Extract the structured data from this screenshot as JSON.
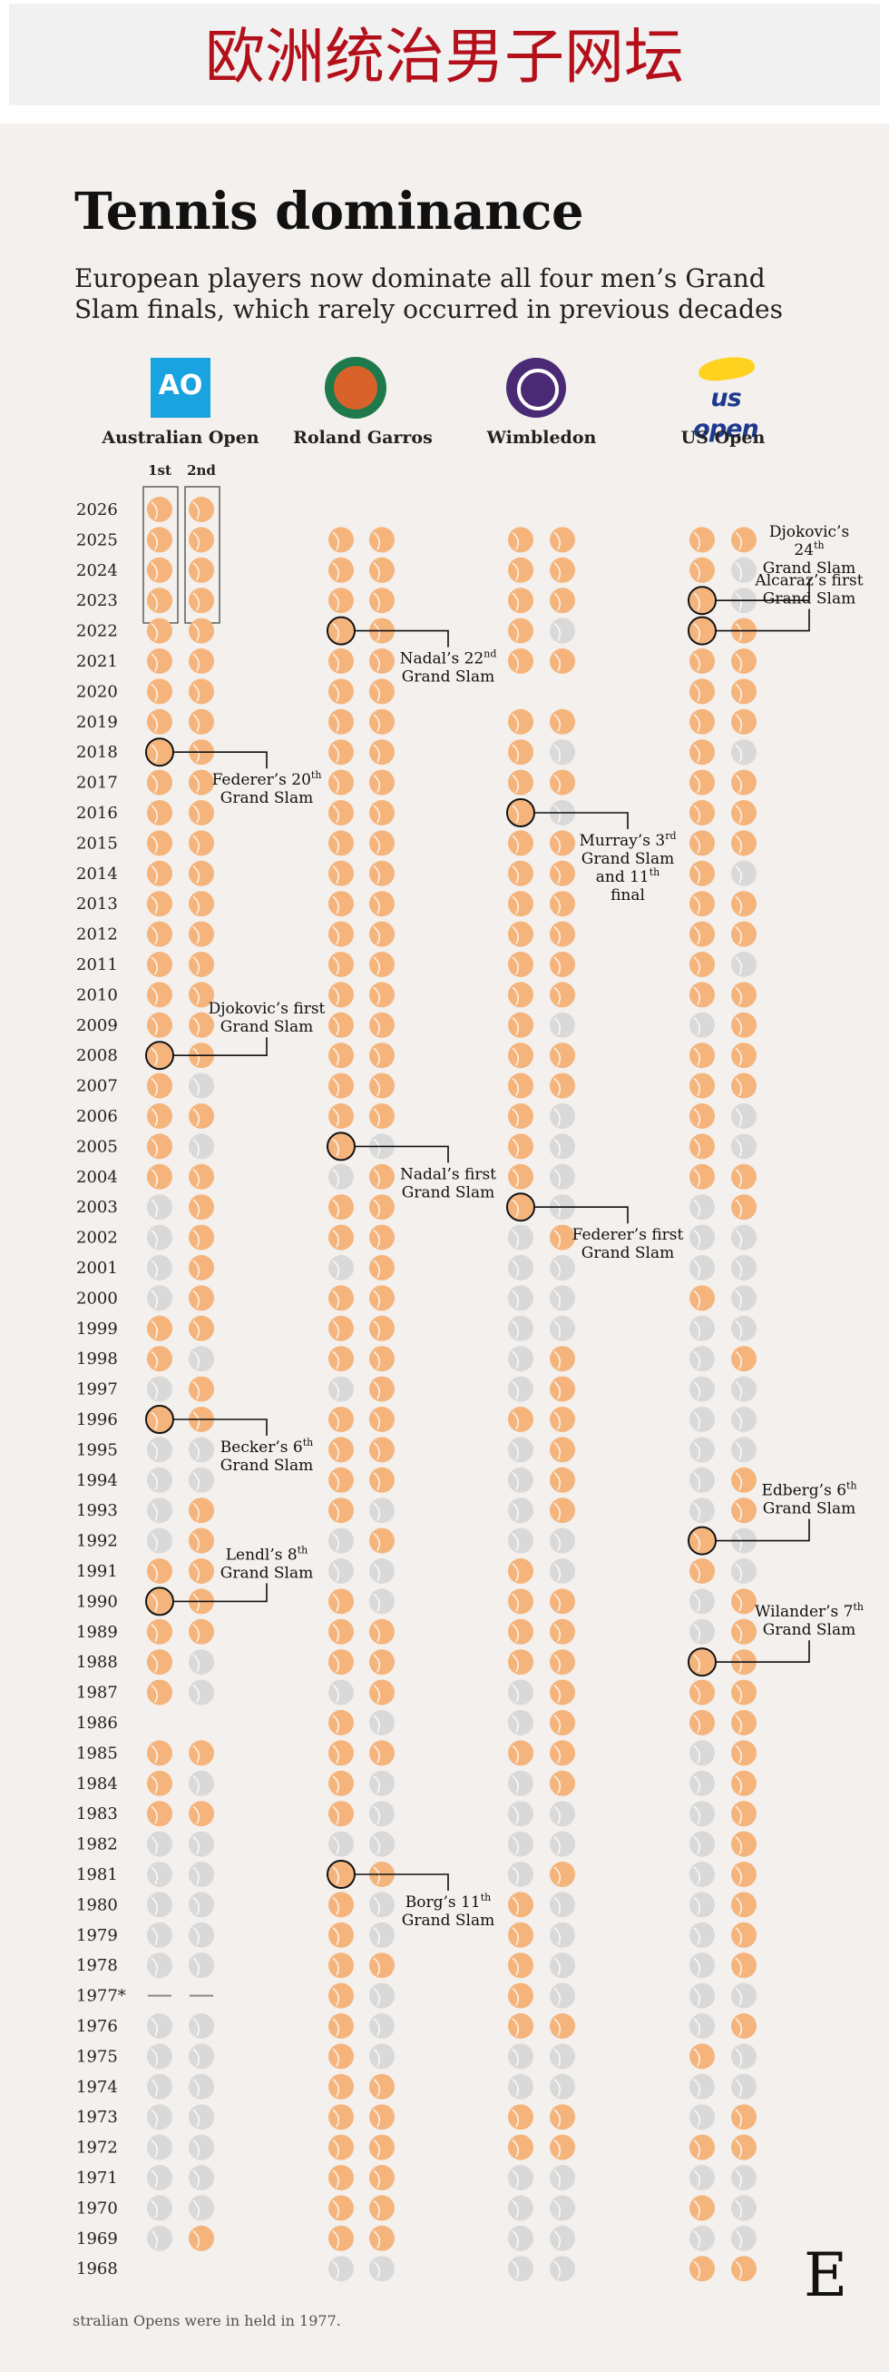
{
  "banner": {
    "title": "欧洲统治男子网坛"
  },
  "title": "Tennis dominance",
  "subtitle": "European players now dominate all four men’s Grand Slam finals, which rarely occurred in previous decades",
  "columns": [
    {
      "name": "Australian Open",
      "logo_text": "AO"
    },
    {
      "name": "Roland Garros",
      "logo_text": ""
    },
    {
      "name": "Wimbledon",
      "logo_text": ""
    },
    {
      "name": "US Open",
      "logo_text": "us open"
    }
  ],
  "subheaders": [
    "1st",
    "2nd"
  ],
  "footnote": "stralian Opens were in held in 1977.",
  "brand": "E",
  "colors": {
    "european": "#f5b47c",
    "non_european": "#d9d9d9",
    "ring": "#111111",
    "banner_text": "#b3101a"
  },
  "chart_data": {
    "type": "dot-matrix",
    "legend": "none",
    "years": [
      2026,
      2025,
      2024,
      2023,
      2022,
      2021,
      2020,
      2019,
      2018,
      2017,
      2016,
      2015,
      2014,
      2013,
      2012,
      2011,
      2010,
      2009,
      2008,
      2007,
      2006,
      2005,
      2004,
      2003,
      2002,
      2001,
      2000,
      1999,
      1998,
      1997,
      1996,
      1995,
      1994,
      1993,
      1992,
      1991,
      1990,
      1989,
      1988,
      1987,
      1986,
      1985,
      1984,
      1983,
      1982,
      1981,
      1980,
      1979,
      1978,
      "1977*",
      1976,
      1975,
      1974,
      1973,
      1972,
      1971,
      1970,
      1969,
      1968
    ],
    "encoding": "E = European finalist (orange), N = non-European finalist (grey), - = no final / not held; each cell = [1st, 2nd]",
    "series": [
      {
        "name": "Australian Open",
        "values": [
          "EE",
          "EE",
          "EE",
          "EE",
          "EE",
          "EE",
          "EE",
          "EE",
          "EE",
          "EE",
          "EE",
          "EE",
          "EE",
          "EE",
          "EE",
          "EE",
          "EE",
          "EE",
          "EE",
          "EN",
          "EE",
          "EN",
          "EE",
          "NE",
          "NE",
          "NE",
          "NE",
          "EE",
          "EN",
          "NE",
          "EE",
          "NN",
          "NN",
          "NE",
          "NE",
          "EE",
          "EE",
          "EE",
          "EN",
          "EN",
          "--",
          "EE",
          "EN",
          "EE",
          "NN",
          "NN",
          "NN",
          "NN",
          "NN",
          "--",
          "NN",
          "NN",
          "NN",
          "NN",
          "NN",
          "NN",
          "NN",
          "NE",
          "--"
        ]
      },
      {
        "name": "Roland Garros",
        "values": [
          "--",
          "EE",
          "EE",
          "EE",
          "EE",
          "EE",
          "EE",
          "EE",
          "EE",
          "EE",
          "EE",
          "EE",
          "EE",
          "EE",
          "EE",
          "EE",
          "EE",
          "EE",
          "EE",
          "EE",
          "EE",
          "EN",
          "NE",
          "EE",
          "EE",
          "NE",
          "EE",
          "EE",
          "EE",
          "NE",
          "EE",
          "EE",
          "EE",
          "EN",
          "NE",
          "NN",
          "EN",
          "EE",
          "EE",
          "NE",
          "EN",
          "EE",
          "EN",
          "EN",
          "NN",
          "EE",
          "EN",
          "EN",
          "EE",
          "EN",
          "EN",
          "EN",
          "EE",
          "EE",
          "EE",
          "EE",
          "EE",
          "EE",
          "NN"
        ]
      },
      {
        "name": "Wimbledon",
        "values": [
          "--",
          "EE",
          "EE",
          "EE",
          "EN",
          "EE",
          "--",
          "EE",
          "EN",
          "EE",
          "EN",
          "EE",
          "EE",
          "EE",
          "EE",
          "EE",
          "EE",
          "EN",
          "EE",
          "EE",
          "EN",
          "EN",
          "EN",
          "EN",
          "NE",
          "NN",
          "NN",
          "NN",
          "NE",
          "NE",
          "EE",
          "NE",
          "NE",
          "NE",
          "NN",
          "EN",
          "EE",
          "EE",
          "EE",
          "NE",
          "NE",
          "EE",
          "NE",
          "NN",
          "NN",
          "NE",
          "EN",
          "EN",
          "EN",
          "EN",
          "EE",
          "NN",
          "NN",
          "EE",
          "EE",
          "NN",
          "NN",
          "NN",
          "NN"
        ]
      },
      {
        "name": "US Open",
        "values": [
          "--",
          "EE",
          "EN",
          "EN",
          "EE",
          "EE",
          "EE",
          "EE",
          "EN",
          "EE",
          "EE",
          "EE",
          "EN",
          "EE",
          "EE",
          "EN",
          "EE",
          "NE",
          "EE",
          "EE",
          "EN",
          "EN",
          "EE",
          "NE",
          "NN",
          "NN",
          "EN",
          "NN",
          "NE",
          "NN",
          "NN",
          "NN",
          "NE",
          "NE",
          "EN",
          "EN",
          "NE",
          "NE",
          "EE",
          "EE",
          "EE",
          "NE",
          "NE",
          "NE",
          "NE",
          "NE",
          "NE",
          "NE",
          "NE",
          "NN",
          "NE",
          "EN",
          "NN",
          "NE",
          "EE",
          "NN",
          "EN",
          "NN",
          "EE"
        ]
      }
    ],
    "annotations": [
      {
        "column": "Australian Open",
        "year": 2018,
        "lines": [
          [
            "Federer’s 20",
            "th"
          ],
          [
            "Grand Slam",
            ""
          ]
        ]
      },
      {
        "column": "Australian Open",
        "year": 2008,
        "lines": [
          [
            "Djokovic’s first",
            ""
          ],
          [
            "Grand Slam",
            ""
          ]
        ]
      },
      {
        "column": "Australian Open",
        "year": 1996,
        "lines": [
          [
            "Becker’s 6",
            "th"
          ],
          [
            "Grand Slam",
            ""
          ]
        ]
      },
      {
        "column": "Australian Open",
        "year": 1990,
        "lines": [
          [
            "Lendl’s 8",
            "th"
          ],
          [
            "Grand Slam",
            ""
          ]
        ]
      },
      {
        "column": "Roland Garros",
        "year": 2022,
        "lines": [
          [
            "Nadal’s 22",
            "nd"
          ],
          [
            "Grand Slam",
            ""
          ]
        ]
      },
      {
        "column": "Roland Garros",
        "year": 2005,
        "lines": [
          [
            "Nadal’s first",
            ""
          ],
          [
            "Grand Slam",
            ""
          ]
        ]
      },
      {
        "column": "Roland Garros",
        "year": 1981,
        "lines": [
          [
            "Borg’s 11",
            "th"
          ],
          [
            "Grand Slam",
            ""
          ]
        ]
      },
      {
        "column": "Wimbledon",
        "year": 2016,
        "lines": [
          [
            "Murray’s 3",
            "rd"
          ],
          [
            "Grand Slam",
            ""
          ],
          [
            "and 11",
            "th"
          ],
          [
            " final",
            ""
          ]
        ]
      },
      {
        "column": "Wimbledon",
        "year": 2003,
        "lines": [
          [
            "Federer’s first",
            ""
          ],
          [
            "Grand Slam",
            ""
          ]
        ]
      },
      {
        "column": "US Open",
        "year": 2023,
        "lines": [
          [
            "Djokovic’s",
            ""
          ],
          [
            "24",
            "th"
          ],
          [
            "Grand Slam",
            ""
          ]
        ]
      },
      {
        "column": "US Open",
        "year": 2022,
        "lines": [
          [
            "Alcaraz’s first",
            ""
          ],
          [
            "Grand Slam",
            ""
          ]
        ]
      },
      {
        "column": "US Open",
        "year": 1992,
        "lines": [
          [
            "Edberg’s 6",
            "th"
          ],
          [
            "Grand Slam",
            ""
          ]
        ]
      },
      {
        "column": "US Open",
        "year": 1988,
        "lines": [
          [
            "Wilander’s 7",
            "th"
          ],
          [
            "Grand Slam",
            ""
          ]
        ]
      }
    ]
  }
}
